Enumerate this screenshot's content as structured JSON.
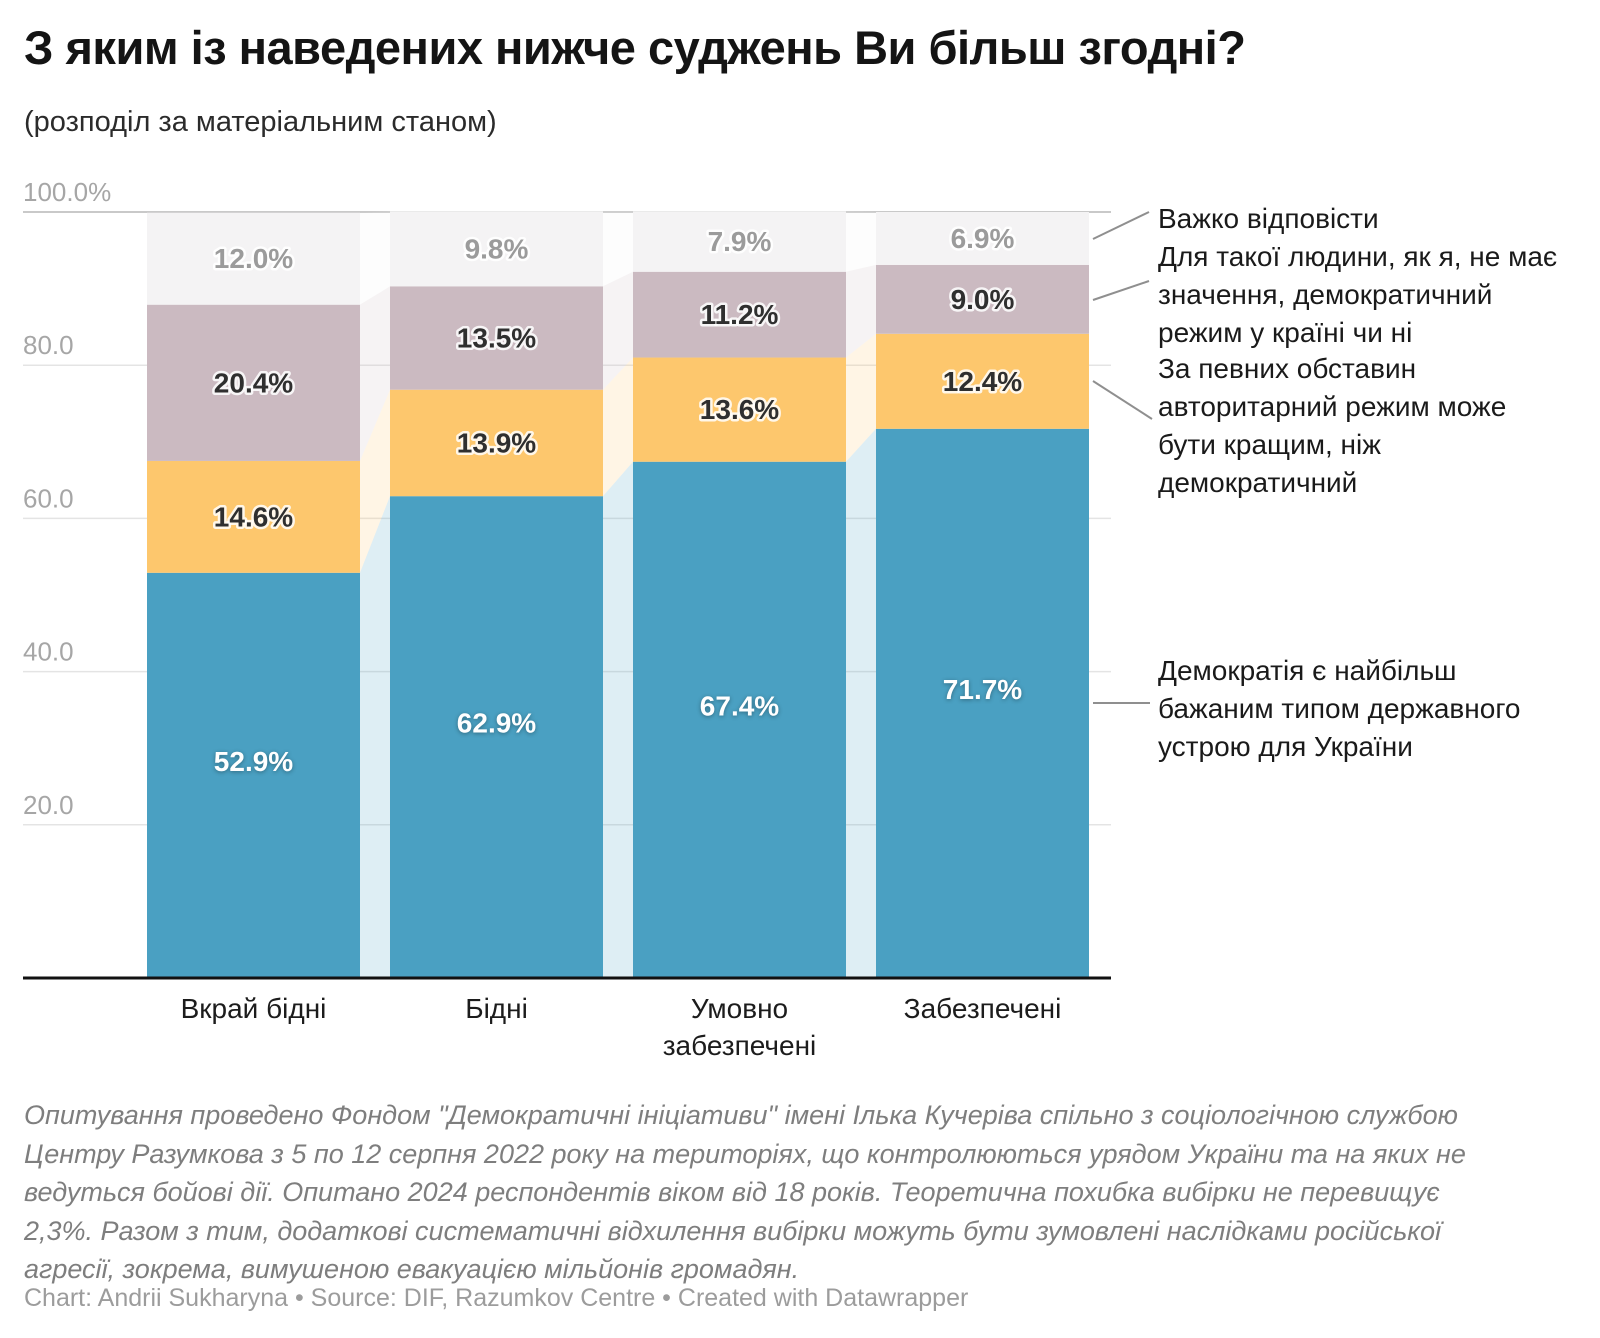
{
  "header": {
    "title": "З яким із наведених нижче суджень Ви більш згодні?",
    "subtitle": "(розподіл за матеріальним станом)"
  },
  "chart_data": {
    "type": "bar",
    "stacked": true,
    "unit": "%",
    "title": "З яким із наведених нижче суджень Ви більш згодні?",
    "subtitle": "(розподіл за матеріальним станом)",
    "categories": [
      "Вкрай бідні",
      "Бідні",
      "Умовно забезпечені",
      "Забезпечені"
    ],
    "series": [
      {
        "name": "Демократія є найбільш бажаним типом державного устрою для України",
        "color": "#4aa0c2",
        "label_color": "#ffffff",
        "values": [
          52.9,
          62.9,
          67.4,
          71.7
        ]
      },
      {
        "name": "За певних обставин авторитарний режим може бути кращим, ніж демократичний",
        "color": "#fdc76d",
        "label_color": "#2f2f2f",
        "values": [
          14.6,
          13.9,
          13.6,
          12.4
        ]
      },
      {
        "name": "Для такої людини, як я, не має значення, демократичний режим у країні чи ні",
        "color": "#cbbac1",
        "label_color": "#2f2f2f",
        "values": [
          20.4,
          13.5,
          11.2,
          9.0
        ]
      },
      {
        "name": "Важко відповісти",
        "color": "#f4f3f4",
        "label_color": "#9b9b9b",
        "values": [
          12.0,
          9.8,
          7.9,
          6.9
        ]
      }
    ],
    "y_ticks": [
      {
        "value": 100,
        "label": "100.0%"
      },
      {
        "value": 80,
        "label": "80.0"
      },
      {
        "value": 60,
        "label": "60.0"
      },
      {
        "value": 40,
        "label": "40.0"
      },
      {
        "value": 20,
        "label": "20.0"
      }
    ],
    "ylim": [
      0,
      100
    ],
    "grid": true,
    "legend_position": "right"
  },
  "legend": {
    "items": [
      {
        "label": "Важко відповісти"
      },
      {
        "label": "Для такої людини, як я, не має\nзначення, демократичний\nрежим у країні чи ні"
      },
      {
        "label": "За певних обставин\nавторитарний режим може\nбути кращим, ніж\nдемократичний"
      },
      {
        "label": "Демократія є найбільш\nбажаним типом державного\nустрою для України"
      }
    ]
  },
  "footer": {
    "notes": "Опитування проведено Фондом \"Демократичні ініціативи\" імені Ілька Кучеріва спільно з соціологічною службою\nЦентру Разумкова з 5 по 12 серпня 2022 року на територіях, що контролюються урядом України та на яких не\nведуться бойові дії. Опитано 2024 респондентів віком від 18 років. Теоретична похибка вибірки не перевищує\n2,3%. Разом з тим, додаткові систематичні відхилення вибірки можуть бути зумовлені наслідками російської\nагресії, зокрема, вимушеною евакуацією мільйонів громадян.",
    "credits_text": "Chart: Andrii Sukharyna • Source: DIF, Razumkov Centre • ",
    "credits_link": "Created with Datawrapper"
  }
}
